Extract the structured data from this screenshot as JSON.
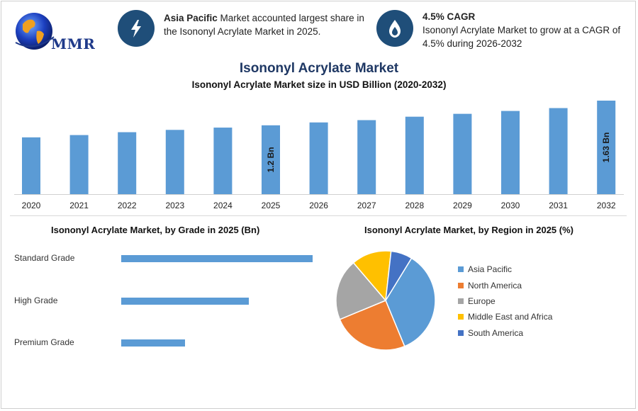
{
  "logo": {
    "text": "MMR"
  },
  "highlights": [
    {
      "bold": "Asia Pacific",
      "text": " Market accounted largest share in the Isononyl Acrylate Market in 2025.",
      "icon": "lightning-bolt-icon"
    },
    {
      "bold": "4.5% CAGR",
      "text": "Isononyl Acrylate Market to grow at a CAGR of 4.5% during 2026-2032",
      "icon": "flame-drop-icon"
    }
  ],
  "colors": {
    "bar": "#5b9bd5",
    "title": "#1f3864",
    "icon_bg": "#1f4e79"
  },
  "chart_data": [
    {
      "type": "bar",
      "title": "Isononyl Acrylate Market",
      "subtitle": "Isononyl Acrylate Market size in USD Billion (2020-2032)",
      "categories": [
        "2020",
        "2021",
        "2022",
        "2023",
        "2024",
        "2025",
        "2026",
        "2027",
        "2028",
        "2029",
        "2030",
        "2031",
        "2032"
      ],
      "values": [
        0.99,
        1.03,
        1.08,
        1.12,
        1.16,
        1.2,
        1.25,
        1.29,
        1.35,
        1.4,
        1.45,
        1.5,
        1.63
      ],
      "data_labels": {
        "2025": "1.2 Bn",
        "2032": "1.63 Bn"
      },
      "ylim": [
        0,
        1.7
      ]
    },
    {
      "type": "bar",
      "orientation": "horizontal",
      "title": "Isononyl Acrylate Market, by Grade in 2025 (Bn)",
      "categories": [
        "Standard Grade",
        "High Grade",
        "Premium Grade"
      ],
      "values": [
        0.6,
        0.4,
        0.2
      ],
      "xlim": [
        0,
        0.6
      ]
    },
    {
      "type": "pie",
      "title": "Isononyl Acrylate Market, by Region in 2025 (%)",
      "categories": [
        "Asia Pacific",
        "North America",
        "Europe",
        "Middle East and Africa",
        "South America"
      ],
      "values": [
        35,
        25,
        20,
        13,
        7
      ],
      "colors": [
        "#5b9bd5",
        "#ed7d31",
        "#a5a5a5",
        "#ffc000",
        "#4472c4"
      ],
      "legend": "right"
    }
  ]
}
